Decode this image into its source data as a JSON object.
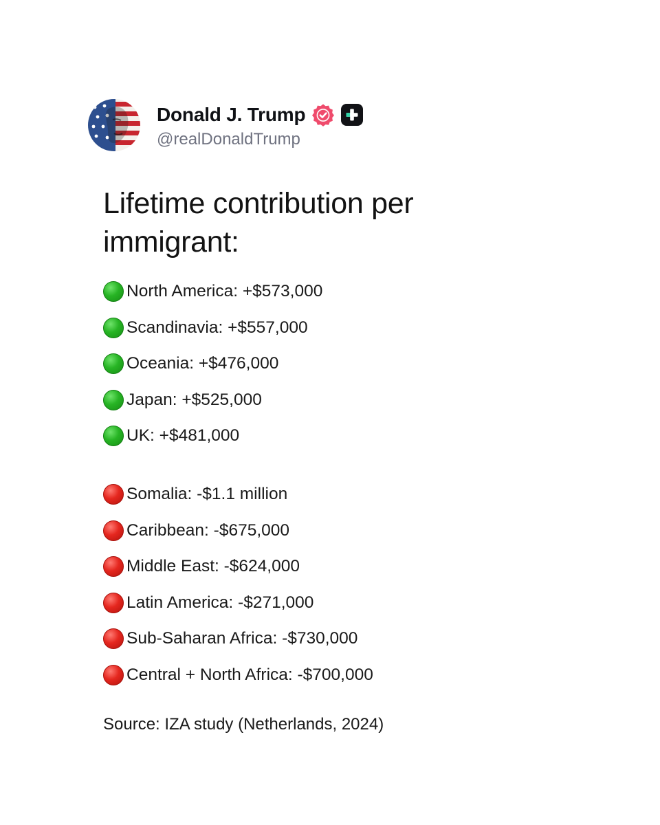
{
  "author": {
    "display_name": "Donald J. Trump",
    "handle": "@realDonaldTrump",
    "avatar_icon": "flag-portrait-avatar",
    "verified_icon": "verified-badge-icon",
    "plus_icon": "plus-square-icon",
    "verified_color": "#ef4b6c"
  },
  "post": {
    "title": "Lifetime contribution per immigrant:",
    "positive_items": [
      {
        "status": "green-circle-icon",
        "label": "North America: +$573,000"
      },
      {
        "status": "green-circle-icon",
        "label": "Scandinavia: +$557,000"
      },
      {
        "status": "green-circle-icon",
        "label": "Oceania: +$476,000"
      },
      {
        "status": "green-circle-icon",
        "label": "Japan: +$525,000"
      },
      {
        "status": "green-circle-icon",
        "label": "UK: +$481,000"
      }
    ],
    "negative_items": [
      {
        "status": "red-circle-icon",
        "label": "Somalia: -$1.1 million"
      },
      {
        "status": "red-circle-icon",
        "label": "Caribbean: -$675,000"
      },
      {
        "status": "red-circle-icon",
        "label": "Middle East: -$624,000"
      },
      {
        "status": "red-circle-icon",
        "label": "Latin America: -$271,000"
      },
      {
        "status": "red-circle-icon",
        "label": "Sub-Saharan Africa: -$730,000"
      },
      {
        "status": "red-circle-icon",
        "label": "Central + North Africa: -$700,000"
      }
    ],
    "source": "Source: IZA study (Netherlands, 2024)"
  },
  "colors": {
    "positive": "#27b424",
    "negative": "#e5271f",
    "handle": "#6f7280"
  }
}
